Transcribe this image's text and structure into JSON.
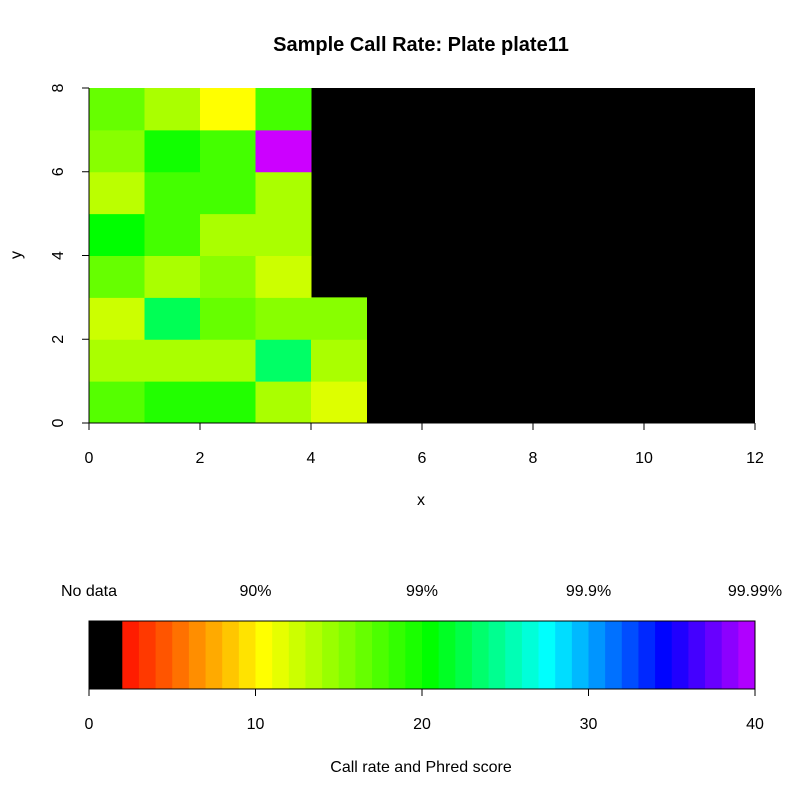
{
  "chart_data": [
    {
      "type": "heatmap",
      "title": "Sample Call Rate:  Plate plate11",
      "xlabel": "x",
      "ylabel": "y",
      "xlim": [
        0,
        12
      ],
      "ylim": [
        0,
        8
      ],
      "x_ticks": [
        0,
        2,
        4,
        6,
        8,
        10,
        12
      ],
      "y_ticks": [
        0,
        2,
        4,
        6,
        8
      ],
      "background_color": "#000000",
      "cells": [
        {
          "x": 0,
          "y": 0,
          "color": "#55ff00"
        },
        {
          "x": 1,
          "y": 0,
          "color": "#22ff00"
        },
        {
          "x": 2,
          "y": 0,
          "color": "#22ff00"
        },
        {
          "x": 3,
          "y": 0,
          "color": "#aaff00"
        },
        {
          "x": 4,
          "y": 0,
          "color": "#ddff00"
        },
        {
          "x": 0,
          "y": 1,
          "color": "#aaff00"
        },
        {
          "x": 1,
          "y": 1,
          "color": "#aaff00"
        },
        {
          "x": 2,
          "y": 1,
          "color": "#aaff00"
        },
        {
          "x": 3,
          "y": 1,
          "color": "#00ff66"
        },
        {
          "x": 4,
          "y": 1,
          "color": "#aaff00"
        },
        {
          "x": 0,
          "y": 2,
          "color": "#ccff00"
        },
        {
          "x": 1,
          "y": 2,
          "color": "#00ff55"
        },
        {
          "x": 2,
          "y": 2,
          "color": "#66ff00"
        },
        {
          "x": 3,
          "y": 2,
          "color": "#88ff00"
        },
        {
          "x": 4,
          "y": 2,
          "color": "#88ff00"
        },
        {
          "x": 0,
          "y": 3,
          "color": "#66ff00"
        },
        {
          "x": 1,
          "y": 3,
          "color": "#aaff00"
        },
        {
          "x": 2,
          "y": 3,
          "color": "#88ff00"
        },
        {
          "x": 3,
          "y": 3,
          "color": "#ccff00"
        },
        {
          "x": 0,
          "y": 4,
          "color": "#00ff00"
        },
        {
          "x": 1,
          "y": 4,
          "color": "#44ff00"
        },
        {
          "x": 2,
          "y": 4,
          "color": "#aaff00"
        },
        {
          "x": 3,
          "y": 4,
          "color": "#aaff00"
        },
        {
          "x": 0,
          "y": 5,
          "color": "#bbff00"
        },
        {
          "x": 1,
          "y": 5,
          "color": "#44ff00"
        },
        {
          "x": 2,
          "y": 5,
          "color": "#44ff00"
        },
        {
          "x": 3,
          "y": 5,
          "color": "#aaff00"
        },
        {
          "x": 0,
          "y": 6,
          "color": "#88ff00"
        },
        {
          "x": 1,
          "y": 6,
          "color": "#11ff00"
        },
        {
          "x": 2,
          "y": 6,
          "color": "#44ff00"
        },
        {
          "x": 3,
          "y": 6,
          "color": "#cc00ff"
        },
        {
          "x": 0,
          "y": 7,
          "color": "#66ff00"
        },
        {
          "x": 1,
          "y": 7,
          "color": "#aaff00"
        },
        {
          "x": 2,
          "y": 7,
          "color": "#ffff00"
        },
        {
          "x": 3,
          "y": 7,
          "color": "#44ff00"
        }
      ]
    },
    {
      "type": "heatmap",
      "title": "",
      "xlabel": "Call rate and Phred score",
      "xlim": [
        0,
        40
      ],
      "x_ticks": [
        0,
        10,
        20,
        30,
        40
      ],
      "top_labels": [
        {
          "value": 0,
          "label": "No data"
        },
        {
          "value": 10,
          "label": "90%"
        },
        {
          "value": 20,
          "label": "99%"
        },
        {
          "value": 30,
          "label": "99.9%"
        },
        {
          "value": 40,
          "label": "99.99%"
        }
      ],
      "scale": [
        {
          "from": 0,
          "to": 1,
          "color": "#000000"
        },
        {
          "from": 1,
          "to": 10,
          "hue_from": 0,
          "hue_to": 60
        },
        {
          "from": 10,
          "to": 20,
          "hue_from": 60,
          "hue_to": 120
        },
        {
          "from": 20,
          "to": 40,
          "hue_from": 120,
          "hue_to": 290
        }
      ]
    }
  ]
}
